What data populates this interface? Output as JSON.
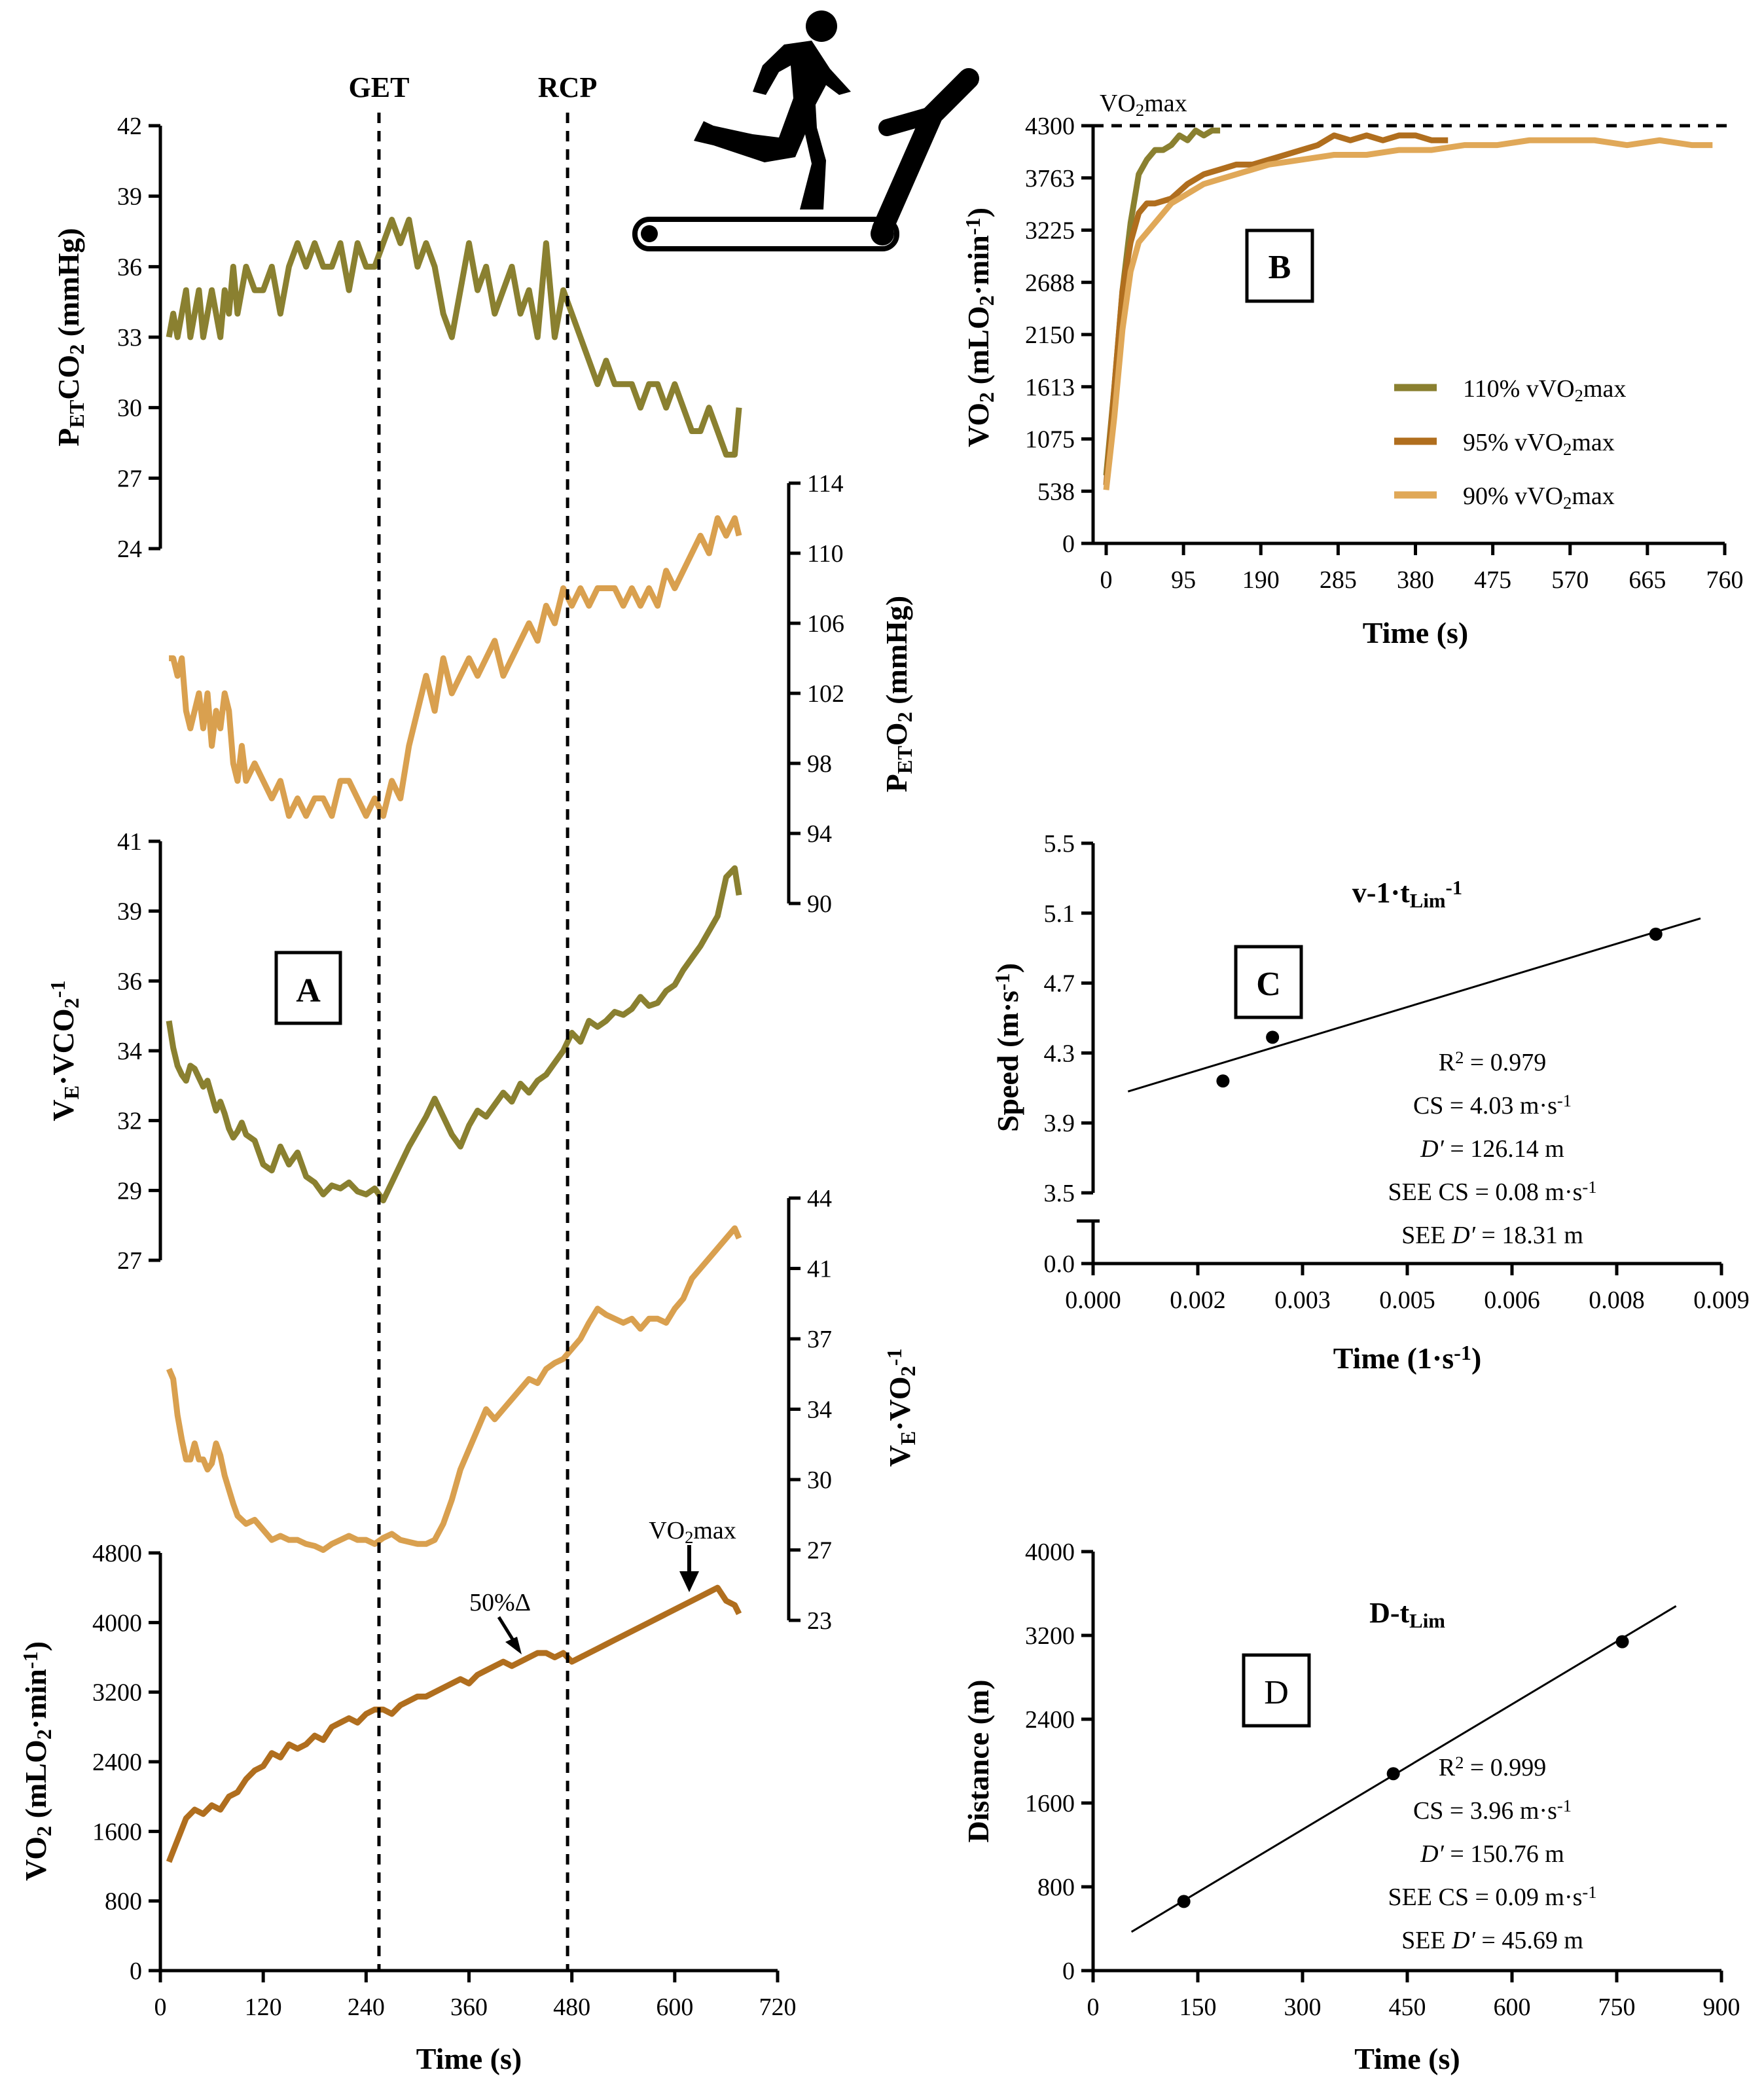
{
  "colors": {
    "olive": "#8a8030",
    "tan": "#d9a04f",
    "brown": "#b06e1e",
    "light": "#e0a858",
    "ink": "#000000"
  },
  "icon": "runner-on-treadmill-icon",
  "panelA": {
    "label": "A",
    "xlabel": "Time (s)",
    "xticks": [
      "0",
      "120",
      "240",
      "360",
      "480",
      "600",
      "720"
    ],
    "get_label": "GET",
    "rcp_label": "RCP",
    "get_x": 255,
    "rcp_x": 475,
    "ann_50": "50%Δ",
    "ann_vo2max": "VO2max",
    "ylabels": {
      "petco2": "PETCO2 (mmHg)",
      "peto2": "PETO2 (mmHg)",
      "vevco2": "VE·VCO2-1",
      "vevo2": "VE·VO2-1",
      "vo2": "VO2 (mLO2·min-1)"
    }
  },
  "chart_data": [
    {
      "type": "line",
      "panel": "A",
      "name": "PETCO2",
      "title": "",
      "xlabel": "Time (s)",
      "ylabel": "PETCO2 (mmHg)",
      "ylim": [
        24,
        42
      ],
      "yticks": [
        "24",
        "27",
        "30",
        "33",
        "36",
        "39",
        "42"
      ],
      "x": [
        10,
        15,
        20,
        25,
        30,
        35,
        40,
        45,
        50,
        55,
        60,
        65,
        70,
        75,
        80,
        85,
        90,
        95,
        100,
        110,
        120,
        130,
        140,
        150,
        160,
        170,
        180,
        190,
        200,
        210,
        220,
        230,
        240,
        250,
        260,
        270,
        280,
        290,
        300,
        310,
        320,
        330,
        340,
        350,
        360,
        370,
        380,
        390,
        400,
        410,
        420,
        430,
        440,
        450,
        460,
        470,
        480,
        490,
        500,
        510,
        520,
        530,
        540,
        550,
        560,
        570,
        580,
        590,
        600,
        610,
        620,
        630,
        640,
        650,
        660,
        670,
        675
      ],
      "y": [
        33,
        34,
        33,
        34,
        35,
        33,
        34,
        35,
        33,
        34,
        35,
        34,
        33,
        35,
        34,
        36,
        34,
        35,
        36,
        35,
        35,
        36,
        34,
        36,
        37,
        36,
        37,
        36,
        36,
        37,
        35,
        37,
        36,
        36,
        37,
        38,
        37,
        38,
        36,
        37,
        36,
        34,
        33,
        35,
        37,
        35,
        36,
        34,
        35,
        36,
        34,
        35,
        33,
        37,
        33,
        35,
        34,
        33,
        32,
        31,
        32,
        31,
        31,
        31,
        30,
        31,
        31,
        30,
        31,
        30,
        29,
        29,
        30,
        29,
        28,
        28,
        30
      ]
    },
    {
      "type": "line",
      "panel": "A",
      "name": "PETO2",
      "title": "",
      "xlabel": "Time (s)",
      "ylabel": "PETO2 (mmHg)",
      "ylim": [
        90,
        114
      ],
      "yticks": [
        "90",
        "94",
        "98",
        "102",
        "106",
        "110",
        "114"
      ],
      "x": [
        10,
        15,
        20,
        25,
        30,
        35,
        40,
        45,
        50,
        55,
        60,
        65,
        70,
        75,
        80,
        85,
        90,
        95,
        100,
        110,
        120,
        130,
        140,
        150,
        160,
        170,
        180,
        190,
        200,
        210,
        220,
        230,
        240,
        250,
        260,
        270,
        280,
        290,
        300,
        310,
        320,
        330,
        340,
        350,
        360,
        370,
        380,
        390,
        400,
        410,
        420,
        430,
        440,
        450,
        460,
        470,
        480,
        490,
        500,
        510,
        520,
        530,
        540,
        550,
        560,
        570,
        580,
        590,
        600,
        610,
        620,
        630,
        640,
        650,
        660,
        670,
        675
      ],
      "y": [
        104,
        104,
        103,
        104,
        101,
        100,
        101,
        102,
        100,
        102,
        99,
        101,
        100,
        102,
        101,
        98,
        97,
        99,
        97,
        98,
        97,
        96,
        97,
        95,
        96,
        95,
        96,
        96,
        95,
        97,
        97,
        96,
        95,
        96,
        95,
        97,
        96,
        99,
        101,
        103,
        101,
        104,
        102,
        103,
        104,
        103,
        104,
        105,
        103,
        104,
        105,
        106,
        105,
        107,
        106,
        108,
        107,
        108,
        107,
        108,
        108,
        108,
        107,
        108,
        107,
        108,
        107,
        109,
        108,
        109,
        110,
        111,
        110,
        112,
        111,
        112,
        111
      ]
    },
    {
      "type": "line",
      "panel": "A",
      "name": "VE-VCO2",
      "title": "",
      "xlabel": "Time (s)",
      "ylabel": "VE·VCO2-1",
      "ylim": [
        27,
        41
      ],
      "yticks": [
        "27",
        "29",
        "32",
        "34",
        "36",
        "39",
        "41"
      ],
      "x": [
        10,
        15,
        20,
        25,
        30,
        35,
        40,
        45,
        50,
        55,
        60,
        65,
        70,
        75,
        80,
        85,
        90,
        95,
        100,
        110,
        120,
        130,
        140,
        150,
        160,
        170,
        180,
        190,
        200,
        210,
        220,
        230,
        240,
        250,
        260,
        270,
        280,
        290,
        300,
        310,
        320,
        330,
        340,
        350,
        360,
        370,
        380,
        390,
        400,
        410,
        420,
        430,
        440,
        450,
        460,
        470,
        480,
        490,
        500,
        510,
        520,
        530,
        540,
        550,
        560,
        570,
        580,
        590,
        600,
        610,
        620,
        630,
        640,
        650,
        660,
        670,
        675
      ],
      "y": [
        35.0,
        34.1,
        33.5,
        33.2,
        33.0,
        33.5,
        33.4,
        33.1,
        32.8,
        33.0,
        32.5,
        32.0,
        32.3,
        31.9,
        31.4,
        31.1,
        31.3,
        31.6,
        31.2,
        31.0,
        30.2,
        30.0,
        30.8,
        30.2,
        30.6,
        29.8,
        29.6,
        29.2,
        29.5,
        29.4,
        29.6,
        29.3,
        29.2,
        29.4,
        29.0,
        29.6,
        30.2,
        30.8,
        31.3,
        31.8,
        32.4,
        31.8,
        31.2,
        30.8,
        31.5,
        32.0,
        31.8,
        32.2,
        32.6,
        32.3,
        32.9,
        32.6,
        33.0,
        33.2,
        33.6,
        34.0,
        34.6,
        34.3,
        35.0,
        34.8,
        35.0,
        35.3,
        35.2,
        35.4,
        35.8,
        35.5,
        35.6,
        36.0,
        36.2,
        36.7,
        37.1,
        37.5,
        38.0,
        38.5,
        39.8,
        40.1,
        39.2
      ]
    },
    {
      "type": "line",
      "panel": "A",
      "name": "VE-VO2",
      "title": "",
      "xlabel": "Time (s)",
      "ylabel": "VE·VO2-1",
      "ylim": [
        23,
        44
      ],
      "yticks": [
        "23",
        "27",
        "30",
        "34",
        "37",
        "41",
        "44"
      ],
      "x": [
        10,
        15,
        20,
        25,
        30,
        35,
        40,
        45,
        50,
        55,
        60,
        65,
        70,
        75,
        80,
        85,
        90,
        95,
        100,
        110,
        120,
        130,
        140,
        150,
        160,
        170,
        180,
        190,
        200,
        210,
        220,
        230,
        240,
        250,
        260,
        270,
        280,
        290,
        300,
        310,
        320,
        330,
        340,
        350,
        360,
        370,
        380,
        390,
        400,
        410,
        420,
        430,
        440,
        450,
        460,
        470,
        480,
        490,
        500,
        510,
        520,
        530,
        540,
        550,
        560,
        570,
        580,
        590,
        600,
        610,
        620,
        630,
        640,
        650,
        660,
        670,
        675
      ],
      "y": [
        35.5,
        35.0,
        33.2,
        32.0,
        31.0,
        31.0,
        31.8,
        31.0,
        31.0,
        30.5,
        30.8,
        31.8,
        31.2,
        30.2,
        29.5,
        28.8,
        28.2,
        28.0,
        27.8,
        28.0,
        27.5,
        27.0,
        27.2,
        27.0,
        27.0,
        26.8,
        26.7,
        26.5,
        26.8,
        27.0,
        27.2,
        27.0,
        27.0,
        26.8,
        27.1,
        27.3,
        27.0,
        26.9,
        26.8,
        26.8,
        27.0,
        27.8,
        29.0,
        30.5,
        31.5,
        32.5,
        33.5,
        33.0,
        33.5,
        34.0,
        34.5,
        35.0,
        34.8,
        35.5,
        35.8,
        36.0,
        36.5,
        37.0,
        37.8,
        38.5,
        38.2,
        38.0,
        37.8,
        38.0,
        37.5,
        38.0,
        38.0,
        37.8,
        38.5,
        39.0,
        40.0,
        40.5,
        41.0,
        41.5,
        42.0,
        42.5,
        42.0
      ]
    },
    {
      "type": "line",
      "panel": "A",
      "name": "VO2",
      "title": "",
      "xlabel": "Time (s)",
      "ylabel": "VO2 (mLO2·min-1)",
      "ylim": [
        0,
        4800
      ],
      "yticks": [
        "0",
        "800",
        "1600",
        "2400",
        "3200",
        "4000",
        "4800"
      ],
      "x": [
        10,
        20,
        30,
        40,
        50,
        60,
        70,
        80,
        90,
        100,
        110,
        120,
        130,
        140,
        150,
        160,
        170,
        180,
        190,
        200,
        210,
        220,
        230,
        240,
        250,
        260,
        270,
        280,
        290,
        300,
        310,
        320,
        330,
        340,
        350,
        360,
        370,
        380,
        390,
        400,
        410,
        420,
        430,
        440,
        450,
        460,
        470,
        480,
        490,
        500,
        510,
        520,
        530,
        540,
        550,
        560,
        570,
        580,
        590,
        600,
        610,
        620,
        630,
        640,
        650,
        660,
        670,
        675
      ],
      "y": [
        1250,
        1500,
        1750,
        1850,
        1800,
        1900,
        1850,
        2000,
        2050,
        2200,
        2300,
        2350,
        2500,
        2450,
        2600,
        2550,
        2600,
        2700,
        2650,
        2800,
        2850,
        2900,
        2850,
        2950,
        3000,
        3000,
        2950,
        3050,
        3100,
        3150,
        3150,
        3200,
        3250,
        3300,
        3350,
        3300,
        3400,
        3450,
        3500,
        3550,
        3500,
        3550,
        3600,
        3650,
        3650,
        3600,
        3650,
        3550,
        3600,
        3650,
        3700,
        3750,
        3800,
        3850,
        3900,
        3950,
        4000,
        4050,
        4100,
        4150,
        4200,
        4250,
        4300,
        4350,
        4400,
        4250,
        4200,
        4100
      ]
    },
    {
      "type": "line",
      "panel": "B",
      "title": "",
      "xlabel": "Time (s)",
      "ylabel": "VO2 (mLO2·min-1)",
      "xlim": [
        0,
        760
      ],
      "ylim": [
        0,
        4300
      ],
      "xticks": [
        "0",
        "95",
        "190",
        "285",
        "380",
        "475",
        "570",
        "665",
        "760"
      ],
      "yticks": [
        "0",
        "538",
        "1075",
        "1613",
        "2150",
        "2688",
        "3225",
        "3763",
        "4300"
      ],
      "refline_label": "VO2max",
      "legend": [
        "110% vVO2max",
        "95% vVO2max",
        "90% vVO2max"
      ],
      "series": [
        {
          "name": "110% vVO2max",
          "color": "olive",
          "x": [
            0,
            10,
            20,
            30,
            40,
            50,
            60,
            70,
            80,
            90,
            100,
            110,
            120,
            130,
            140
          ],
          "y": [
            700,
            1600,
            2600,
            3300,
            3800,
            3950,
            4050,
            4050,
            4100,
            4200,
            4150,
            4250,
            4200,
            4250,
            4250
          ]
        },
        {
          "name": "95% vVO2max",
          "color": "brown",
          "x": [
            0,
            10,
            20,
            30,
            40,
            50,
            60,
            80,
            100,
            120,
            140,
            160,
            180,
            200,
            220,
            240,
            260,
            280,
            300,
            320,
            340,
            360,
            380,
            400,
            420
          ],
          "y": [
            600,
            1600,
            2600,
            3100,
            3400,
            3500,
            3500,
            3550,
            3700,
            3800,
            3850,
            3900,
            3900,
            3950,
            4000,
            4050,
            4100,
            4200,
            4150,
            4200,
            4150,
            4200,
            4200,
            4150,
            4150
          ]
        },
        {
          "name": "90% vVO2max",
          "color": "light",
          "x": [
            0,
            10,
            20,
            30,
            40,
            50,
            60,
            80,
            100,
            120,
            140,
            160,
            180,
            200,
            240,
            280,
            320,
            360,
            400,
            440,
            480,
            520,
            560,
            600,
            640,
            680,
            720,
            745
          ],
          "y": [
            550,
            1300,
            2200,
            2800,
            3100,
            3200,
            3300,
            3500,
            3600,
            3700,
            3750,
            3800,
            3850,
            3900,
            3950,
            4000,
            4000,
            4050,
            4050,
            4100,
            4100,
            4150,
            4150,
            4150,
            4100,
            4150,
            4100,
            4100
          ]
        }
      ]
    },
    {
      "type": "scatter",
      "panel": "C",
      "title": "v-1·tLim-1",
      "xlabel": "Time (1·s-1)",
      "ylabel": "Speed (m·s-1)",
      "xlim": [
        0,
        0.009
      ],
      "ylim": [
        3.5,
        5.5
      ],
      "xticks": [
        "0.000",
        "0.002",
        "0.003",
        "0.005",
        "0.006",
        "0.008",
        "0.009"
      ],
      "yticks": [
        "3.5",
        "3.9",
        "4.3",
        "4.7",
        "5.1",
        "5.5"
      ],
      "ybreak_tick": "0.0",
      "x": [
        0.00186,
        0.00257,
        0.00806
      ],
      "y": [
        4.14,
        4.39,
        4.98
      ],
      "fit": {
        "x": [
          0.0005,
          0.0087
        ],
        "y": [
          4.08,
          5.07
        ]
      },
      "stats": [
        "R2 = 0.979",
        "CS = 4.03 m·s-1",
        "D′ = 126.14 m",
        "SEE CS = 0.08 m·s-1",
        "SEE D′ = 18.31 m"
      ]
    },
    {
      "type": "scatter",
      "panel": "D",
      "title": "D-tLim",
      "xlabel": "Time (s)",
      "ylabel": "Distance (m)",
      "xlim": [
        0,
        900
      ],
      "ylim": [
        0,
        4000
      ],
      "xticks": [
        "0",
        "150",
        "300",
        "450",
        "600",
        "750",
        "900"
      ],
      "yticks": [
        "0",
        "800",
        "1600",
        "2400",
        "3200",
        "4000"
      ],
      "x": [
        130,
        430,
        758
      ],
      "y": [
        660,
        1880,
        3140
      ],
      "fit": {
        "x": [
          55,
          835
        ],
        "y": [
          370,
          3480
        ]
      },
      "stats": [
        "R2 = 0.999",
        "CS = 3.96 m·s-1",
        "D′ = 150.76 m",
        "SEE CS = 0.09 m·s-1",
        "SEE D′ = 45.69 m"
      ]
    }
  ]
}
